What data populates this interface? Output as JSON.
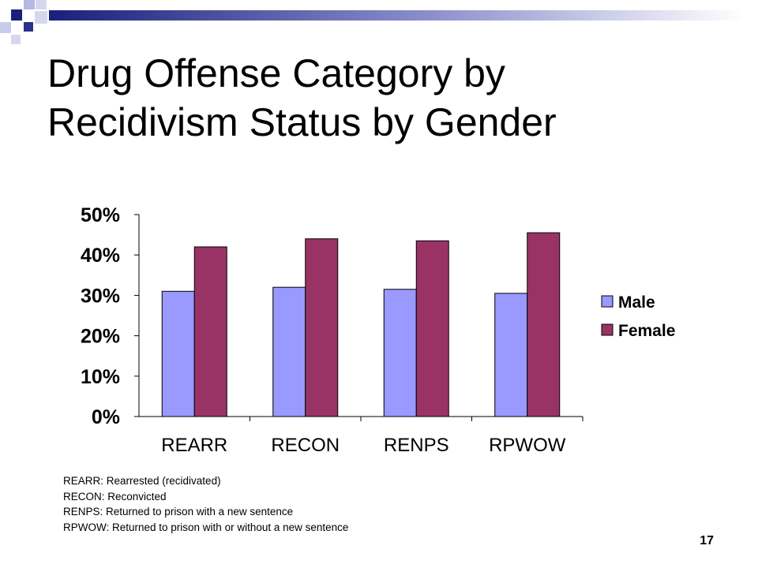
{
  "slide": {
    "title_lines": [
      "Drug Offense Category by",
      "Recidivism Status by Gender"
    ],
    "page_number": "17",
    "footnotes": [
      "REARR: Rearrested (recidivated)",
      "RECON: Reconvicted",
      "RENPS: Returned to prison with a new sentence",
      "RPWOW: Returned to prison with or without a new sentence"
    ],
    "colors": {
      "deco_navy": "#1a1f7a",
      "deco_lavender": "#b7b9e3"
    }
  },
  "chart_data": {
    "type": "bar",
    "title": "",
    "xlabel": "",
    "ylabel": "",
    "categories": [
      "REARR",
      "RECON",
      "RENPS",
      "RPWOW"
    ],
    "series": [
      {
        "name": "Male",
        "values": [
          31,
          32,
          31.5,
          30.5
        ],
        "color": "#9999ff"
      },
      {
        "name": "Female",
        "values": [
          42,
          44,
          43.5,
          45.5
        ],
        "color": "#993366"
      }
    ],
    "ylim": [
      0,
      50
    ],
    "yticks": [
      "0%",
      "10%",
      "20%",
      "30%",
      "40%",
      "50%"
    ],
    "grid": false,
    "legend": "right"
  }
}
